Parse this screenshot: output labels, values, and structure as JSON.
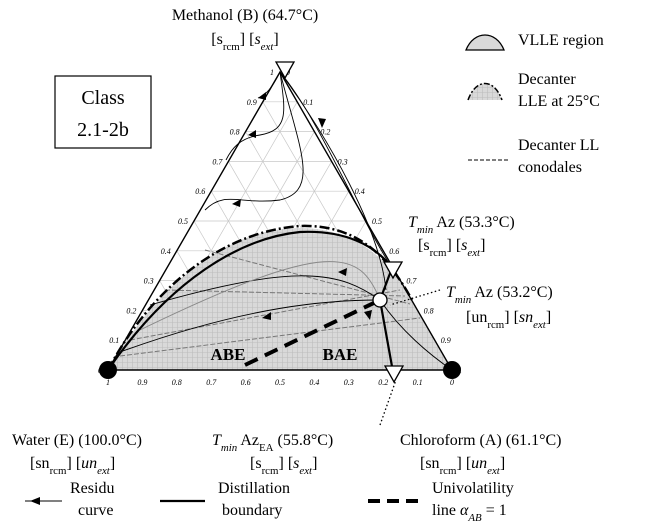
{
  "labels": [
    [
      [
        "Methanol (B) (64.7°C)",
        "n"
      ]
    ],
    [
      [
        "[s",
        "n"
      ],
      [
        "rcm",
        "s"
      ],
      [
        "] [",
        "n"
      ],
      [
        "s",
        "i"
      ],
      [
        "ext",
        "is"
      ],
      [
        "]",
        "n"
      ]
    ],
    [
      [
        "Class",
        "n"
      ]
    ],
    [
      [
        "2.1-2b",
        "n"
      ]
    ],
    [
      [
        "VLLE region",
        "n"
      ]
    ],
    [
      [
        "Decanter",
        "n"
      ]
    ],
    [
      [
        "LLE at 25°C",
        "n"
      ]
    ],
    [
      [
        "Decanter LL",
        "n"
      ]
    ],
    [
      [
        "conodales",
        "n"
      ]
    ],
    [
      [
        "T",
        "i"
      ],
      [
        "min",
        "is"
      ],
      [
        " Az (53.3°C)",
        "n"
      ]
    ],
    [
      [
        "[s",
        "n"
      ],
      [
        "rcm",
        "s"
      ],
      [
        "] [",
        "n"
      ],
      [
        "s",
        "i"
      ],
      [
        "ext",
        "is"
      ],
      [
        "]",
        "n"
      ]
    ],
    [
      [
        "T",
        "i"
      ],
      [
        "min",
        "is"
      ],
      [
        " Az (53.2°C)",
        "n"
      ]
    ],
    [
      [
        "[un",
        "n"
      ],
      [
        "rcm",
        "s"
      ],
      [
        "] [",
        "n"
      ],
      [
        "sn",
        "i"
      ],
      [
        "ext",
        "is"
      ],
      [
        "]",
        "n"
      ]
    ],
    [
      [
        "ABE",
        "b"
      ]
    ],
    [
      [
        "BAE",
        "b"
      ]
    ],
    [
      [
        "Water (E) (100.0°C)",
        "n"
      ]
    ],
    [
      [
        "[sn",
        "n"
      ],
      [
        "rcm",
        "s"
      ],
      [
        "] [",
        "n"
      ],
      [
        "un",
        "i"
      ],
      [
        "ext",
        "is"
      ],
      [
        "]",
        "n"
      ]
    ],
    [
      [
        "T",
        "i"
      ],
      [
        "min",
        "is"
      ],
      [
        " Az",
        "n"
      ],
      [
        "EA",
        "s"
      ],
      [
        " (55.8°C)",
        "n"
      ]
    ],
    [
      [
        "[s",
        "n"
      ],
      [
        "rcm",
        "s"
      ],
      [
        "] [",
        "n"
      ],
      [
        "s",
        "i"
      ],
      [
        "ext",
        "is"
      ],
      [
        "]",
        "n"
      ]
    ],
    [
      [
        "Chloroform (A) (61.1°C)",
        "n"
      ]
    ],
    [
      [
        "[sn",
        "n"
      ],
      [
        "rcm",
        "s"
      ],
      [
        "] [",
        "n"
      ],
      [
        "un",
        "i"
      ],
      [
        "ext",
        "is"
      ],
      [
        "]",
        "n"
      ]
    ],
    [
      [
        "Residu",
        "n"
      ]
    ],
    [
      [
        "curve",
        "n"
      ]
    ],
    [
      [
        "Distillation",
        "n"
      ]
    ],
    [
      [
        "boundary",
        "n"
      ]
    ],
    [
      [
        "Univolatility",
        "n"
      ]
    ],
    [
      [
        "line ",
        "n"
      ],
      [
        "α",
        "i"
      ],
      [
        "AB",
        "is"
      ],
      [
        " = 1",
        "n"
      ]
    ]
  ],
  "ticks": [
    0,
    0.1,
    0.2,
    0.3,
    0.4,
    0.5,
    0.6,
    0.7,
    0.8,
    0.9,
    1
  ]
}
